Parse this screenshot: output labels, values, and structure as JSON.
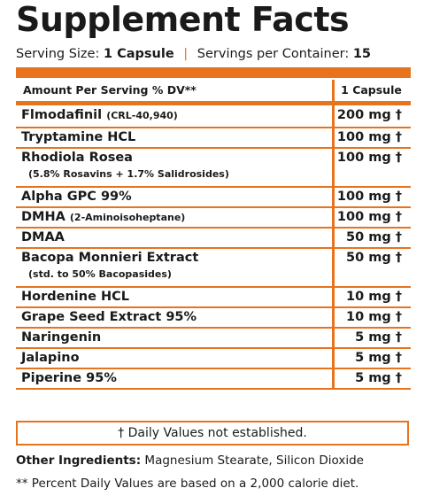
{
  "title": "Supplement Facts",
  "serving": {
    "size_label": "Serving Size:",
    "size_value": "1 Capsule",
    "separator": "|",
    "per_container_label": "Servings per Container:",
    "per_container_value": "15"
  },
  "table": {
    "header_left": "Amount Per Serving  % DV**",
    "header_right": "1 Capsule",
    "rows": [
      {
        "name": "Flmodafinil",
        "paren": "(CRL-40,940)",
        "sub": "",
        "amount": "200 mg †"
      },
      {
        "name": "Tryptamine HCL",
        "paren": "",
        "sub": "",
        "amount": "100 mg †"
      },
      {
        "name": "Rhodiola Rosea",
        "paren": "",
        "sub": "(5.8% Rosavins + 1.7% Salidrosides)",
        "amount": "100 mg †"
      },
      {
        "name": "Alpha GPC 99%",
        "paren": "",
        "sub": "",
        "amount": "100 mg †"
      },
      {
        "name": "DMHA",
        "paren": "(2-Aminoisoheptane)",
        "sub": "",
        "amount": "100 mg †"
      },
      {
        "name": "DMAA",
        "paren": "",
        "sub": "",
        "amount": "50 mg †"
      },
      {
        "name": "Bacopa Monnieri Extract",
        "paren": "",
        "sub": "(std. to 50% Bacopasides)",
        "amount": "50 mg †"
      },
      {
        "name": "Hordenine HCL",
        "paren": "",
        "sub": "",
        "amount": "10 mg †"
      },
      {
        "name": "Grape Seed Extract 95%",
        "paren": "",
        "sub": "",
        "amount": "10 mg †"
      },
      {
        "name": "Naringenin",
        "paren": "",
        "sub": "",
        "amount": "5 mg †"
      },
      {
        "name": "Jalapino",
        "paren": "",
        "sub": "",
        "amount": "5 mg †"
      },
      {
        "name": "Piperine 95%",
        "paren": "",
        "sub": "",
        "amount": "5 mg †"
      }
    ]
  },
  "daily_values_note": "† Daily Values not established.",
  "other_ingredients": {
    "label": "Other Ingredients:",
    "value": "Magnesium Stearate, Silicon Dioxide"
  },
  "footnote": "** Percent Daily Values are based on a 2,000 calorie diet.",
  "colors": {
    "accent": "#e8731f",
    "text": "#1a1a1a"
  }
}
